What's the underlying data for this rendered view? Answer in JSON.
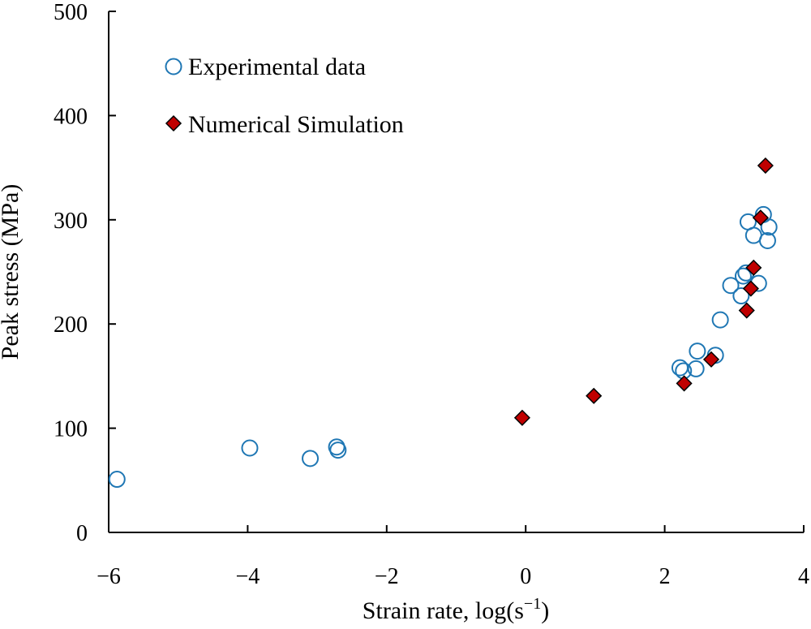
{
  "chart_data": {
    "type": "scatter",
    "title": "",
    "xlabel": "Strain rate, log(s",
    "xlabel_sup": "−1",
    "xlabel_tail": ")",
    "ylabel": "Peak stress (MPa)",
    "xlim": [
      -6,
      4
    ],
    "ylim": [
      0,
      500
    ],
    "x_ticks": [
      -6,
      -4,
      -2,
      0,
      2,
      4
    ],
    "x_tick_labels": [
      "−6",
      "−4",
      "−2",
      "0",
      "2",
      "4"
    ],
    "y_ticks": [
      0,
      100,
      200,
      300,
      400,
      500
    ],
    "y_tick_labels": [
      "0",
      "100",
      "200",
      "300",
      "400",
      "500"
    ],
    "grid": false,
    "legend_position": "top-left",
    "series": [
      {
        "name": "Experimental data",
        "marker": "open-circle",
        "color": "#1f77b4",
        "points": [
          {
            "x": -5.88,
            "y": 51
          },
          {
            "x": -3.97,
            "y": 81
          },
          {
            "x": -3.1,
            "y": 71
          },
          {
            "x": -2.72,
            "y": 82
          },
          {
            "x": -2.7,
            "y": 79
          },
          {
            "x": 2.22,
            "y": 158
          },
          {
            "x": 2.27,
            "y": 155
          },
          {
            "x": 2.45,
            "y": 157
          },
          {
            "x": 2.47,
            "y": 174
          },
          {
            "x": 2.73,
            "y": 170
          },
          {
            "x": 2.8,
            "y": 204
          },
          {
            "x": 2.95,
            "y": 237
          },
          {
            "x": 3.1,
            "y": 227
          },
          {
            "x": 3.13,
            "y": 246
          },
          {
            "x": 3.17,
            "y": 249
          },
          {
            "x": 3.2,
            "y": 298
          },
          {
            "x": 3.28,
            "y": 285
          },
          {
            "x": 3.35,
            "y": 239
          },
          {
            "x": 3.42,
            "y": 305
          },
          {
            "x": 3.48,
            "y": 280
          },
          {
            "x": 3.5,
            "y": 293
          }
        ]
      },
      {
        "name": "Numerical Simulation",
        "marker": "filled-diamond",
        "color": "#c00000",
        "points": [
          {
            "x": -0.05,
            "y": 110
          },
          {
            "x": 0.98,
            "y": 131
          },
          {
            "x": 2.28,
            "y": 143
          },
          {
            "x": 2.67,
            "y": 166
          },
          {
            "x": 3.18,
            "y": 213
          },
          {
            "x": 3.24,
            "y": 234
          },
          {
            "x": 3.28,
            "y": 254
          },
          {
            "x": 3.38,
            "y": 302
          },
          {
            "x": 3.45,
            "y": 352
          }
        ]
      }
    ]
  }
}
